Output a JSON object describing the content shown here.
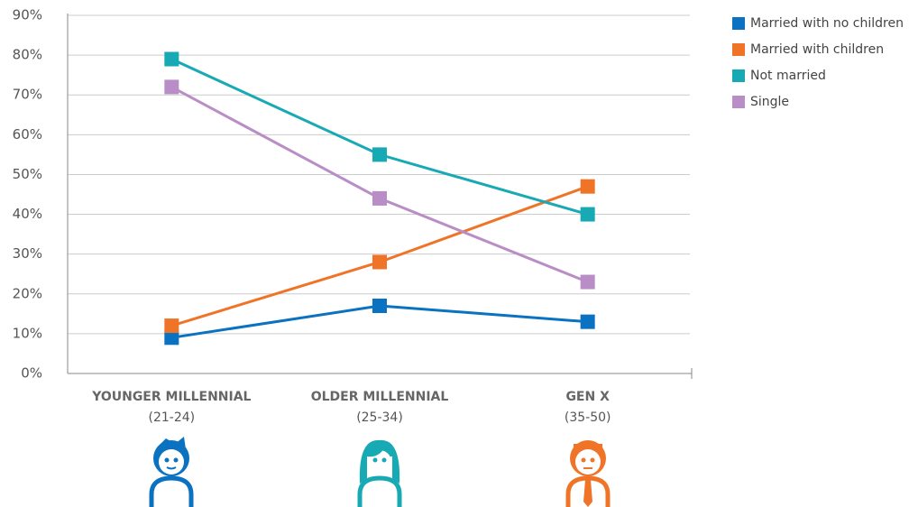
{
  "chart_data": {
    "type": "line",
    "categories": [
      "YOUNGER MILLENNIAL",
      "OLDER MILLENNIAL",
      "GEN X"
    ],
    "category_ranges": [
      "(21-24)",
      "(25-34)",
      "(35-50)"
    ],
    "series": [
      {
        "name": "Married with no children",
        "color": "#0a72c0",
        "values": [
          9,
          17,
          13
        ]
      },
      {
        "name": "Married with children",
        "color": "#f07428",
        "values": [
          12,
          28,
          47
        ]
      },
      {
        "name": "Not married",
        "color": "#17a9b4",
        "values": [
          79,
          55,
          40
        ]
      },
      {
        "name": "Single",
        "color": "#b98ec7",
        "values": [
          72,
          44,
          23
        ]
      }
    ],
    "ylim": [
      0,
      90
    ],
    "yticks": [
      {
        "value": 0,
        "label": "0%"
      },
      {
        "value": 10,
        "label": "10%"
      },
      {
        "value": 20,
        "label": "20%"
      },
      {
        "value": 30,
        "label": "30%"
      },
      {
        "value": 40,
        "label": "40%"
      },
      {
        "value": 50,
        "label": "50%"
      },
      {
        "value": 60,
        "label": "60%"
      },
      {
        "value": 70,
        "label": "70%"
      },
      {
        "value": 80,
        "label": "80%"
      },
      {
        "value": 90,
        "label": "90%"
      }
    ],
    "grid": true,
    "legend": "right"
  }
}
